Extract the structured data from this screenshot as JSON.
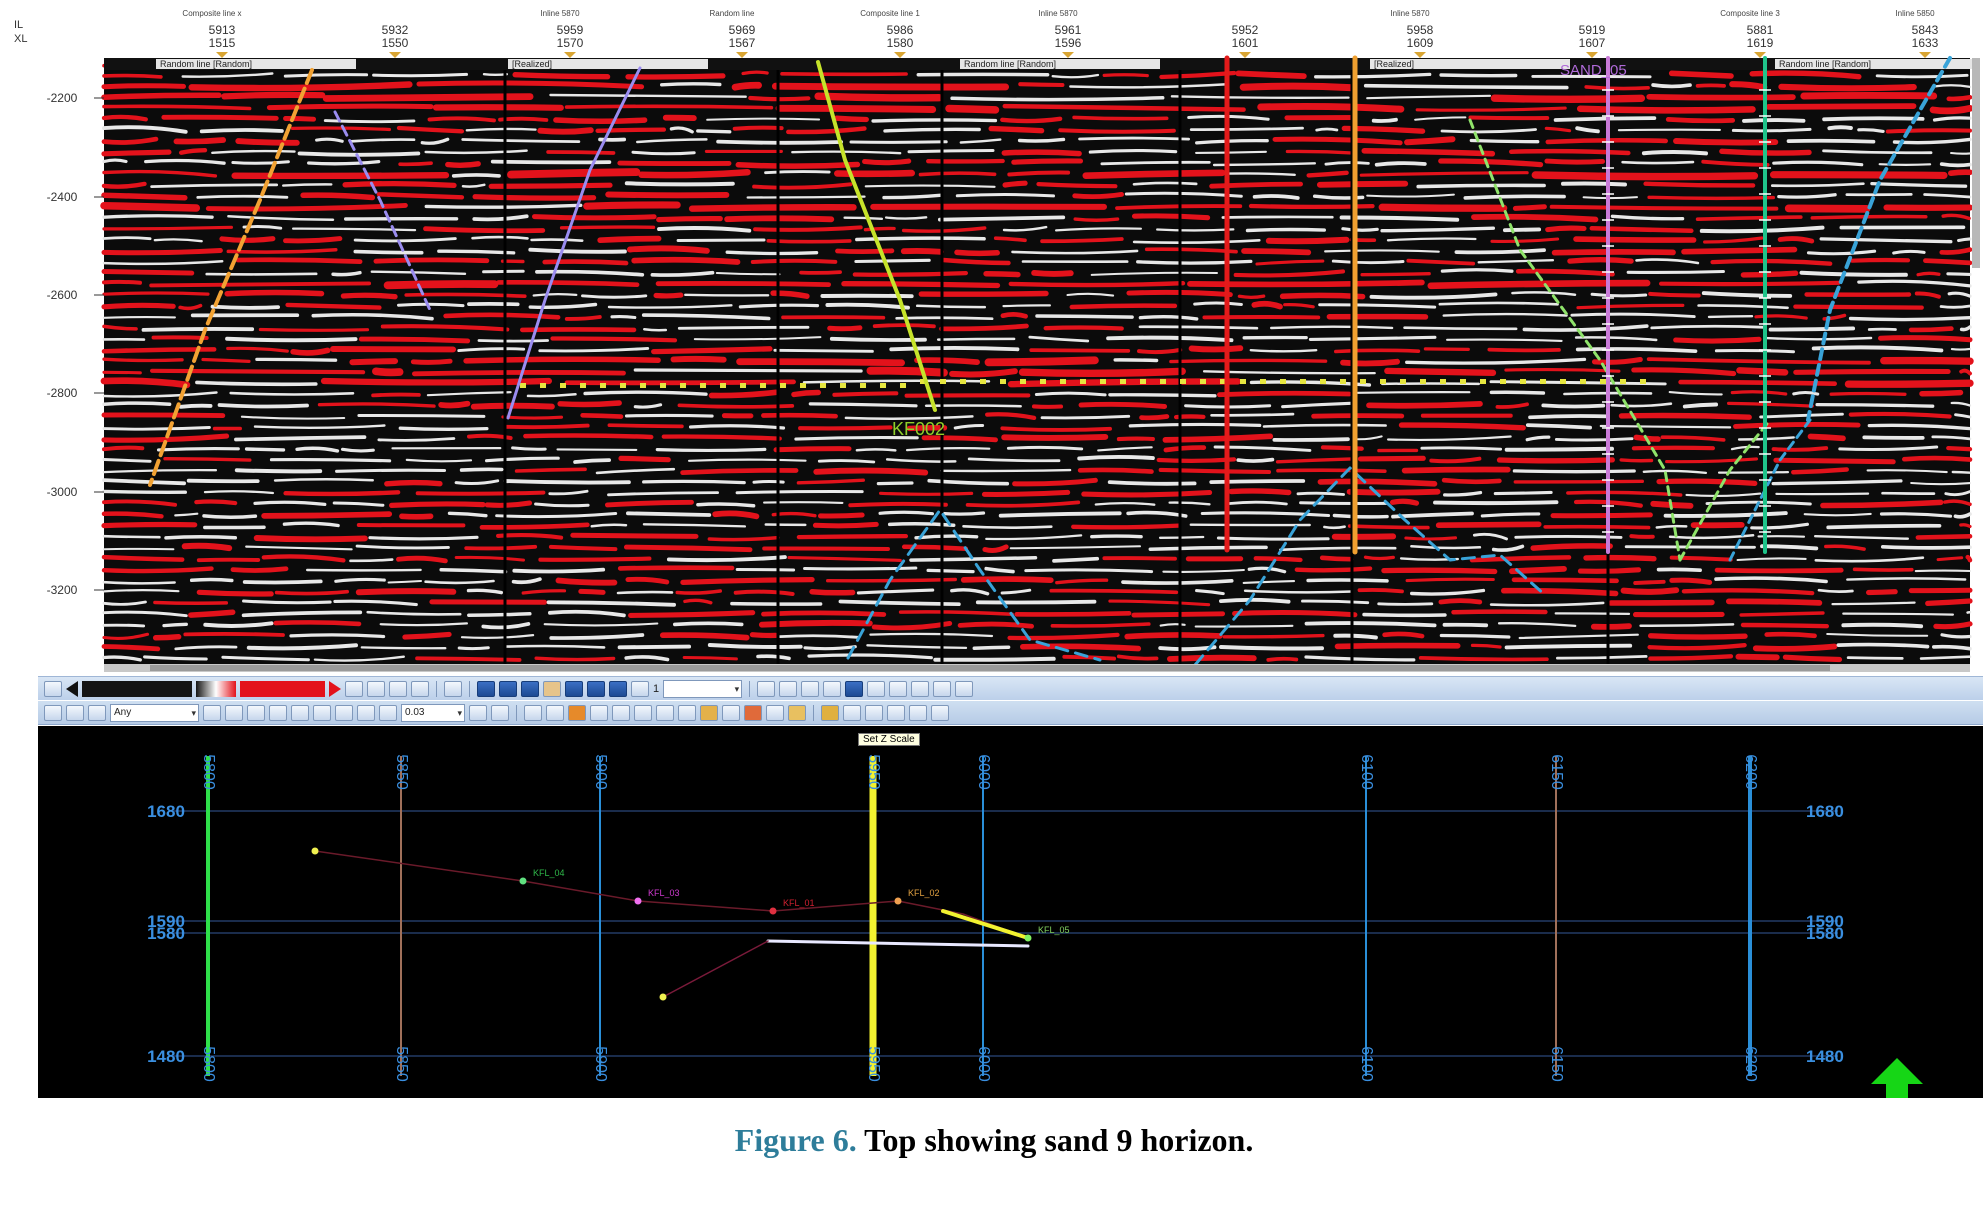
{
  "header": {
    "il_label": "IL",
    "xl_label": "XL",
    "columns": [
      {
        "il": "5913",
        "xl": "1515",
        "title": "Composite line x"
      },
      {
        "il": "5932",
        "xl": "1550",
        "title": ""
      },
      {
        "il": "5959",
        "xl": "1570",
        "title": "Inline 5870"
      },
      {
        "il": "5969",
        "xl": "1567",
        "title": "Random line"
      },
      {
        "il": "5986",
        "xl": "1580",
        "title": "Composite line 1"
      },
      {
        "il": "5961",
        "xl": "1596",
        "title": "Inline 5870"
      },
      {
        "il": "5952",
        "xl": "1601",
        "title": ""
      },
      {
        "il": "5958",
        "xl": "1609",
        "title": "Inline 5870"
      },
      {
        "il": "5919",
        "xl": "1607",
        "title": ""
      },
      {
        "il": "5881",
        "xl": "1619",
        "title": "Composite line 3"
      },
      {
        "il": "5843",
        "xl": "1633",
        "title": "Inline 5850"
      }
    ],
    "panel_tabs": [
      "Random line [Random]",
      "[Realized]",
      "Random line [Random]",
      "[Realized]",
      "Random line [Random]",
      "Random line [Random]"
    ],
    "highlight_label": "SAND_05"
  },
  "time_axis": {
    "labels": [
      "2200",
      "2400",
      "2600",
      "2800",
      "3000",
      "3200"
    ]
  },
  "horizon_label": "KF002",
  "colors": {
    "seismic_red": "#e3121b",
    "seismic_bg": "#0b0b0b",
    "horizon_dotted": "#e6e640",
    "fault_orange": "#f2a233",
    "fault_lavender": "#9a8cf0",
    "fault_yellowgreen": "#c6e32a",
    "well_red": "#e31a1a",
    "well_orange": "#f0a030",
    "well_violet": "#c97ad8",
    "well_green": "#1fc48a",
    "fault_blue": "#39a3d8",
    "fault_lightgreen": "#8fe36a"
  },
  "toolbar1": {
    "zoom_label": "1",
    "icons": [
      "play-back-icon",
      "palette-icon",
      "undo-icon",
      "page-icon",
      "ruler-icon",
      "grid-icon",
      "cut-icon",
      "save-icon",
      "save-all-icon",
      "import-icon",
      "camera-icon",
      "export-icon",
      "print-icon",
      "binoculars-icon",
      "print2-icon",
      "tools-icon"
    ]
  },
  "toolbar2": {
    "mode_combo": "Any",
    "scale_combo": "0.03",
    "icons": [
      "select-icon",
      "pan-icon",
      "zoom-in-icon",
      "zoom-out-icon",
      "measure-icon",
      "paint-icon",
      "pick-icon",
      "layer-icon",
      "stack-icon",
      "pencil-icon",
      "erase-icon",
      "settings-icon"
    ]
  },
  "basemap": {
    "tooltip": "Set Z Scale",
    "top_labels": [
      "5800",
      "5850",
      "5900",
      "5950",
      "6000",
      "6100",
      "6150",
      "6200"
    ],
    "bottom_labels": [
      "5800",
      "5850",
      "5900",
      "5950",
      "6000",
      "6100",
      "6150",
      "6200"
    ],
    "left_labels": [
      "1680",
      "1590",
      "1580",
      "1480"
    ],
    "right_labels": [
      "1680",
      "1590",
      "1580",
      "1480"
    ],
    "well_labels": [
      "KFL_04",
      "KFL_03",
      "KFL_02",
      "KFL_01",
      "KFL_05"
    ]
  },
  "caption": {
    "figure_label": "Figure 6.",
    "text": "Top showing sand 9 horizon."
  }
}
